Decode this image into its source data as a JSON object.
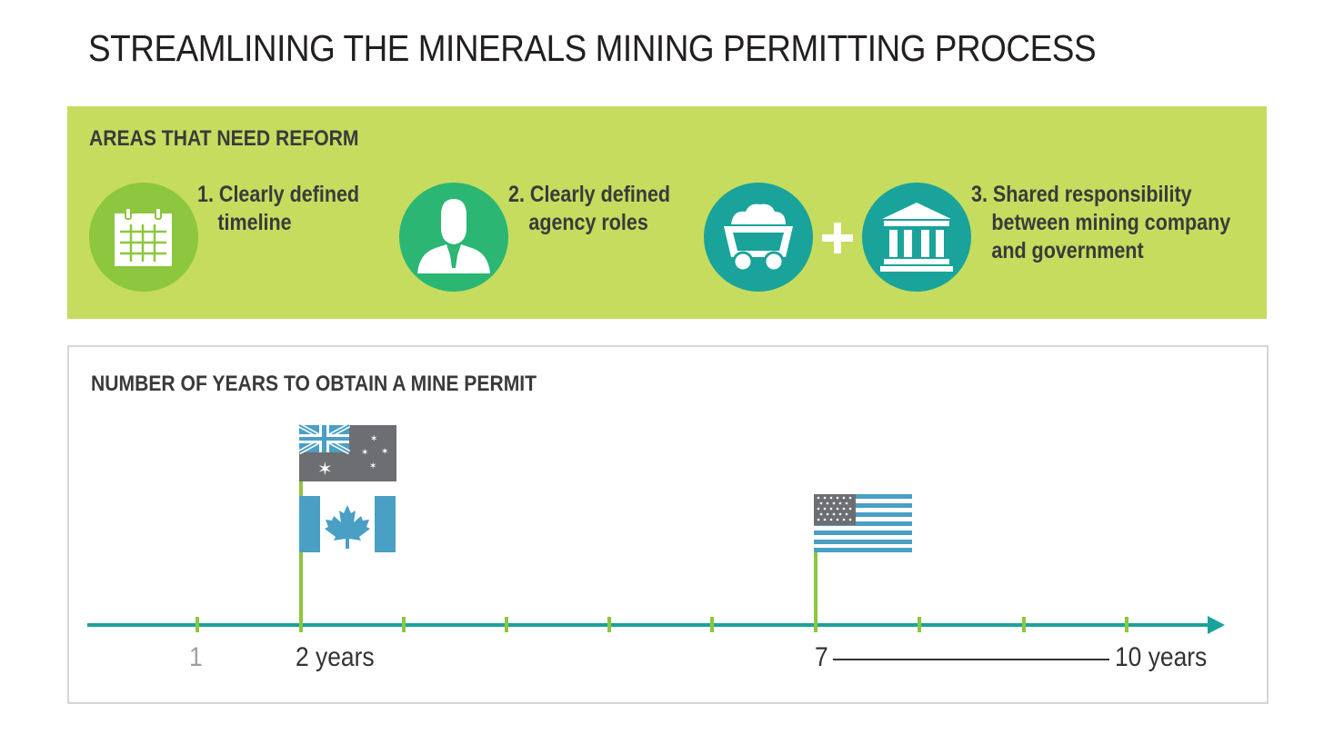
{
  "title": "STREAMLINING THE MINERALS MINING PERMITTING PROCESS",
  "reform": {
    "heading": "AREAS THAT NEED REFORM",
    "items": [
      {
        "icon": "calendar-icon",
        "number": "1.",
        "line1": "Clearly defined",
        "line2": "timeline",
        "line3": ""
      },
      {
        "icon": "person-icon",
        "number": "2.",
        "line1": "Clearly defined",
        "line2": "agency roles",
        "line3": ""
      },
      {
        "icon": "mine-cart-icon + government-building-icon",
        "number": "3.",
        "line1": "Shared responsibility",
        "line2": "between mining company",
        "line3": "and government"
      }
    ],
    "colors": {
      "panel": "#c5dc5f",
      "circle1": "#8dc63f",
      "circle2": "#2bb673",
      "circle3": "#1aa39a"
    }
  },
  "timeline": {
    "heading": "NUMBER OF YEARS TO OBTAIN A MINE PERMIT",
    "labels": {
      "one": "1",
      "two": "2 years",
      "seven": "7",
      "ten": "10 years"
    },
    "ticks": [
      1,
      2,
      3,
      4,
      5,
      6,
      7,
      8,
      9,
      10
    ],
    "markers": [
      {
        "country": "Australia",
        "flag": "australia-flag-icon",
        "year": 2
      },
      {
        "country": "Canada",
        "flag": "canada-flag-icon",
        "year": 2
      },
      {
        "country": "United States",
        "flag": "usa-flag-icon",
        "year": 7
      }
    ],
    "colors": {
      "axis": "#1aa39a",
      "tick": "#8dc63f",
      "flag_pole": "#8dc63f",
      "flag_blue": "#4a9fc4",
      "flag_gray": "#6d6e71"
    }
  }
}
